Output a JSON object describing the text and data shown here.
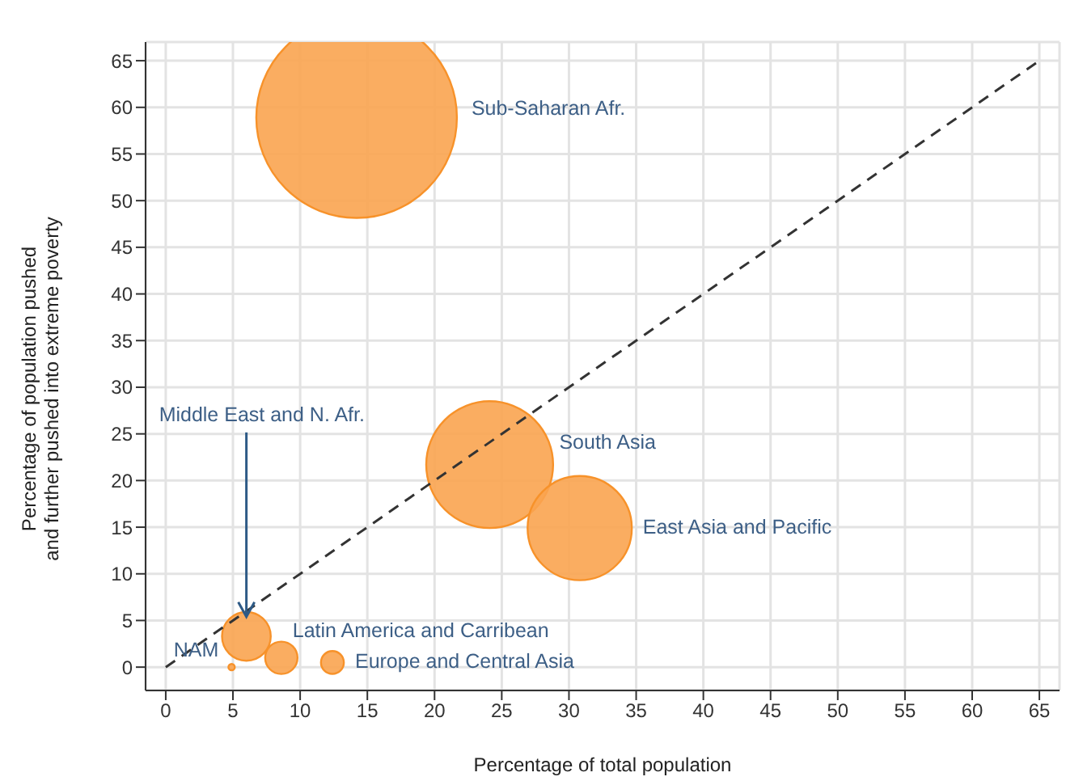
{
  "chart_data": {
    "type": "bubble",
    "xlabel": "Percentage of total population",
    "ylabel": "Percentage of population pushed\nand further pushed into extreme poverty",
    "x": [
      14.2,
      24.1,
      30.8,
      6.0,
      8.6,
      12.4,
      4.9
    ],
    "values": [
      58.9,
      21.7,
      14.9,
      3.3,
      1.0,
      0.5,
      0.0
    ],
    "sizes": [
      1,
      0.4,
      0.27,
      0.059,
      0.026,
      0.013,
      0.001
    ],
    "color": "#f9a450",
    "series": [
      {
        "type": "line",
        "x": [
          0,
          65
        ],
        "values": [
          0,
          65
        ],
        "color": "#333333",
        "line_style": "dashed"
      }
    ],
    "annotations": [
      "Sub-Saharan Afr.",
      "South Asia",
      "East Asia and Pacific",
      {
        "text": "Middle East and N. Afr.",
        "x": 6.0,
        "y": 5.4
      },
      "Latin America and Carribean",
      "Europe and Central Asia",
      "NAM"
    ],
    "xlim": [
      -1.5,
      66.5
    ],
    "ylim": [
      -2.5,
      67
    ],
    "xticks": [
      0,
      5,
      10,
      15,
      20,
      25,
      30,
      35,
      40,
      45,
      50,
      55,
      60,
      65
    ],
    "yticks": [
      0,
      5,
      10,
      15,
      20,
      25,
      30,
      35,
      40,
      45,
      50,
      55,
      60,
      65
    ],
    "grid": true,
    "legend": false
  }
}
